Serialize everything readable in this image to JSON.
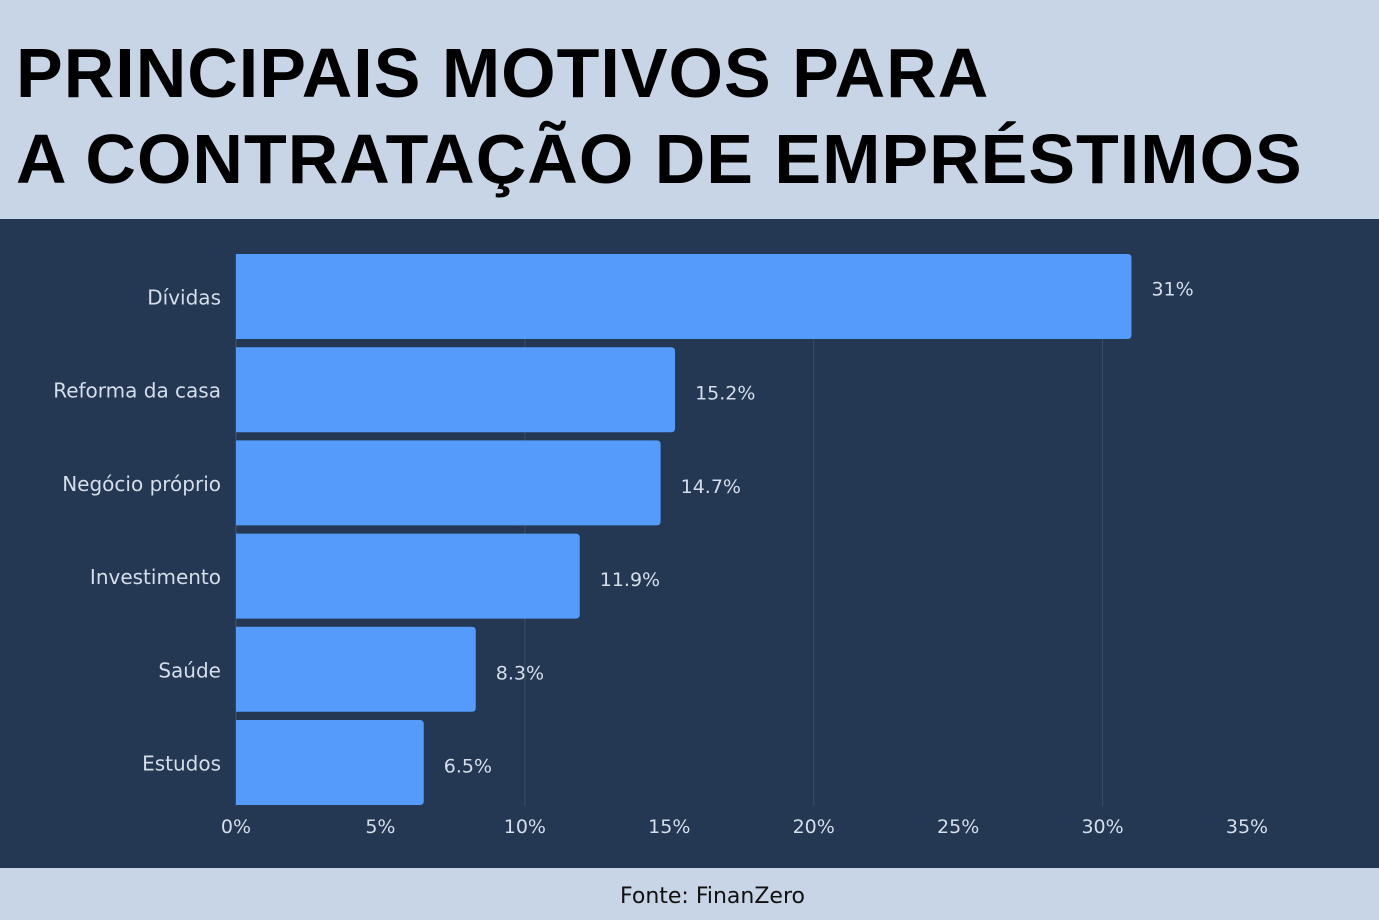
{
  "title_lines": [
    "PRINCIPAIS MOTIVOS PARA",
    "A CONTRATAÇÃO DE EMPRÉSTIMOS"
  ],
  "source": "Fonte: FinanZero",
  "colors": {
    "bar": "#559bfb",
    "panel": "#243853",
    "header": "#c8d5e6",
    "text": "#d5deea",
    "grid": "#3a4c66"
  },
  "chart_data": {
    "type": "bar",
    "orientation": "horizontal",
    "title": "PRINCIPAIS MOTIVOS PARA A CONTRATAÇÃO DE EMPRÉSTIMOS",
    "categories": [
      "Dívidas",
      "Reforma da casa",
      "Negócio próprio",
      "Investimento",
      "Saúde",
      "Estudos"
    ],
    "values": [
      31,
      15.2,
      14.7,
      11.9,
      8.3,
      6.5
    ],
    "value_labels": [
      "31%",
      "15.2%",
      "14.7%",
      "11.9%",
      "8.3%",
      "6.5%"
    ],
    "xlim": [
      0,
      35
    ],
    "xticks": [
      0,
      5,
      10,
      15,
      20,
      25,
      30,
      35
    ],
    "xtick_labels": [
      "0%",
      "5%",
      "10%",
      "15%",
      "20%",
      "25%",
      "30%",
      "35%"
    ],
    "grid_values": [
      10,
      20,
      30
    ],
    "xlabel": "",
    "ylabel": ""
  }
}
